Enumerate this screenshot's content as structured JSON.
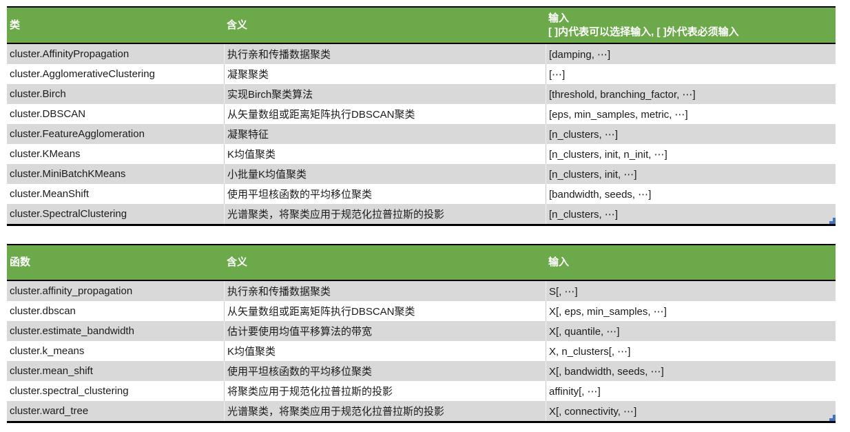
{
  "colors": {
    "header_green": "#6CA94A",
    "row_gray": "#D9D9D9",
    "row_white": "#FFFFFF",
    "header_text": "#FFFFFF",
    "body_text": "#1B1B1B",
    "table_border": "#000000",
    "resize_handle_blue": "#4472C4"
  },
  "tables": [
    {
      "id": "class-table",
      "headers": [
        {
          "label": "类",
          "sub": ""
        },
        {
          "label": "含义",
          "sub": ""
        },
        {
          "label": "输入",
          "sub": "[ ]内代表可以选择输入, [ ]外代表必须输入"
        }
      ],
      "rows": [
        [
          "cluster.AffinityPropagation",
          "执行亲和传播数据聚类",
          "[damping, ⋯]"
        ],
        [
          "cluster.AgglomerativeClustering",
          "凝聚聚类",
          "[⋯]"
        ],
        [
          "cluster.Birch",
          "实现Birch聚类算法",
          "[threshold, branching_factor, ⋯]"
        ],
        [
          "cluster.DBSCAN",
          "从矢量数组或距离矩阵执行DBSCAN聚类",
          "[eps, min_samples, metric, ⋯]"
        ],
        [
          "cluster.FeatureAgglomeration",
          "凝聚特征",
          "[n_clusters, ⋯]"
        ],
        [
          "cluster.KMeans",
          "K均值聚类",
          "[n_clusters, init, n_init, ⋯]"
        ],
        [
          "cluster.MiniBatchKMeans",
          "小批量K均值聚类",
          "[n_clusters, init, ⋯]"
        ],
        [
          "cluster.MeanShift",
          "使用平坦核函数的平均移位聚类",
          "[bandwidth, seeds, ⋯]"
        ],
        [
          "cluster.SpectralClustering",
          "光谱聚类，将聚类应用于规范化拉普拉斯的投影",
          "[n_clusters, ⋯]"
        ]
      ]
    },
    {
      "id": "function-table",
      "headers": [
        {
          "label": "函数",
          "sub": ""
        },
        {
          "label": "含义",
          "sub": ""
        },
        {
          "label": "输入",
          "sub": ""
        }
      ],
      "rows": [
        [
          "cluster.affinity_propagation",
          "执行亲和传播数据聚类",
          "S[, ⋯]"
        ],
        [
          "cluster.dbscan",
          "从矢量数组或距离矩阵执行DBSCAN聚类",
          "X[, eps, min_samples, ⋯]"
        ],
        [
          "cluster.estimate_bandwidth",
          "估计要使用均值平移算法的带宽",
          "X[, quantile, ⋯]"
        ],
        [
          "cluster.k_means",
          "K均值聚类",
          "X, n_clusters[, ⋯]"
        ],
        [
          "cluster.mean_shift",
          "使用平坦核函数的平均移位聚类",
          "X[, bandwidth, seeds, ⋯]"
        ],
        [
          "cluster.spectral_clustering",
          "将聚类应用于规范化拉普拉斯的投影",
          "affinity[, ⋯]"
        ],
        [
          "cluster.ward_tree",
          "光谱聚类，将聚类应用于规范化拉普拉斯的投影",
          "X[, connectivity, ⋯]"
        ]
      ]
    }
  ],
  "cell_names": [
    "name-cell",
    "meaning-cell",
    "input-cell"
  ]
}
